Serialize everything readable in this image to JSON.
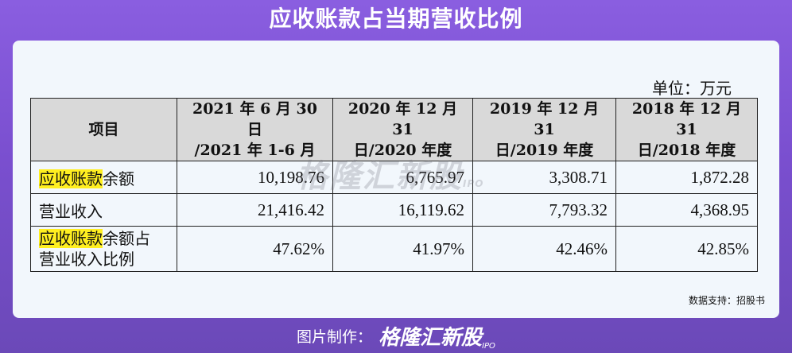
{
  "title": "应收账款占当期营收比例",
  "unit": "单位：万元",
  "table": {
    "headers": [
      {
        "line1": "项目",
        "line2": ""
      },
      {
        "line1": "2021 年 6 月 30 日",
        "line2": "/2021 年 1-6 月"
      },
      {
        "line1": "2020 年 12 月 31",
        "line2": "日/2020 年度"
      },
      {
        "line1": "2019 年 12 月 31",
        "line2": "日/2019 年度"
      },
      {
        "line1": "2018 年 12 月 31",
        "line2": "日/2018 年度"
      }
    ],
    "rows": [
      {
        "label_hl": "应收账款",
        "label_rest": "余额",
        "label_line2": "",
        "values": [
          "10,198.76",
          "6,765.97",
          "3,308.71",
          "1,872.28"
        ]
      },
      {
        "label_hl": "",
        "label_rest": "营业收入",
        "label_line2": "",
        "values": [
          "21,416.42",
          "16,119.62",
          "7,793.32",
          "4,368.95"
        ]
      },
      {
        "label_hl": "应收账款",
        "label_rest": "余额占",
        "label_line2": "营业收入比例",
        "values": [
          "47.62%",
          "41.97%",
          "42.46%",
          "42.85%"
        ]
      }
    ]
  },
  "watermark": {
    "text": "格隆汇新股",
    "sub": "IPO"
  },
  "source": "数据支持：招股书",
  "footer": {
    "made": "图片制作：",
    "logo": "格隆汇新股",
    "sub": "IPO"
  },
  "colors": {
    "background": "#7a4fcf",
    "card": "#f2f7fc",
    "highlight": "#ffef20",
    "header_fill": "#d9d9d9"
  }
}
